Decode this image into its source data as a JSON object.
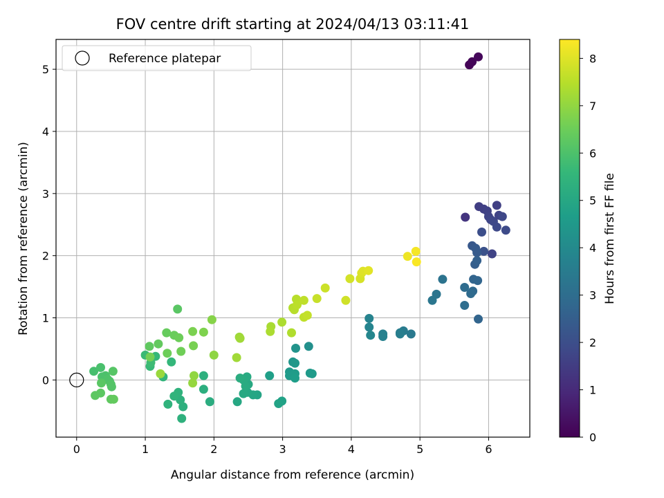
{
  "chart_data": {
    "type": "scatter",
    "title": "FOV centre drift starting at 2024/04/13 03:11:41",
    "xlabel": "Angular distance from reference (arcmin)",
    "ylabel": "Rotation from reference (arcmin)",
    "xlim": [
      -0.3,
      6.6
    ],
    "ylim": [
      -0.92,
      5.48
    ],
    "xticks": [
      0,
      1,
      2,
      3,
      4,
      5,
      6
    ],
    "yticks": [
      0,
      1,
      2,
      3,
      4,
      5
    ],
    "grid": true,
    "legend": {
      "placement": "top-left",
      "label": "Reference platepar",
      "marker": "open-circle"
    },
    "reference_point": {
      "x": 0,
      "y": 0
    },
    "colorbar": {
      "label": "Hours from first FF file",
      "colormap": "viridis",
      "range": [
        0,
        8.4
      ],
      "ticks": [
        0,
        1,
        2,
        3,
        4,
        5,
        6,
        7,
        8
      ]
    },
    "points": [
      {
        "x": 5.72,
        "y": 5.07,
        "c": 0.05
      },
      {
        "x": 5.76,
        "y": 5.12,
        "c": 0.1
      },
      {
        "x": 5.85,
        "y": 5.2,
        "c": 0.15
      },
      {
        "x": 5.66,
        "y": 2.62,
        "c": 1.3
      },
      {
        "x": 5.86,
        "y": 2.79,
        "c": 1.55
      },
      {
        "x": 5.93,
        "y": 2.75,
        "c": 1.6
      },
      {
        "x": 5.98,
        "y": 2.72,
        "c": 1.65
      },
      {
        "x": 6.0,
        "y": 2.63,
        "c": 1.7
      },
      {
        "x": 6.03,
        "y": 2.58,
        "c": 1.75
      },
      {
        "x": 6.07,
        "y": 2.55,
        "c": 1.8
      },
      {
        "x": 6.12,
        "y": 2.81,
        "c": 1.6
      },
      {
        "x": 6.15,
        "y": 2.65,
        "c": 1.7
      },
      {
        "x": 6.12,
        "y": 2.46,
        "c": 1.85
      },
      {
        "x": 6.2,
        "y": 2.63,
        "c": 1.8
      },
      {
        "x": 6.25,
        "y": 2.41,
        "c": 1.9
      },
      {
        "x": 6.05,
        "y": 2.03,
        "c": 1.7
      },
      {
        "x": 5.9,
        "y": 2.38,
        "c": 2.0
      },
      {
        "x": 5.93,
        "y": 2.07,
        "c": 2.1
      },
      {
        "x": 5.76,
        "y": 2.16,
        "c": 2.3
      },
      {
        "x": 5.81,
        "y": 2.12,
        "c": 2.35
      },
      {
        "x": 5.83,
        "y": 2.05,
        "c": 2.4
      },
      {
        "x": 5.8,
        "y": 1.86,
        "c": 2.5
      },
      {
        "x": 5.83,
        "y": 1.92,
        "c": 2.55
      },
      {
        "x": 5.78,
        "y": 1.62,
        "c": 2.7
      },
      {
        "x": 5.84,
        "y": 1.6,
        "c": 2.75
      },
      {
        "x": 5.77,
        "y": 1.43,
        "c": 2.85
      },
      {
        "x": 5.74,
        "y": 1.39,
        "c": 2.9
      },
      {
        "x": 5.65,
        "y": 1.49,
        "c": 2.95
      },
      {
        "x": 5.65,
        "y": 1.2,
        "c": 3.0
      },
      {
        "x": 5.85,
        "y": 0.98,
        "c": 2.7
      },
      {
        "x": 5.33,
        "y": 1.62,
        "c": 3.2
      },
      {
        "x": 5.24,
        "y": 1.38,
        "c": 3.25
      },
      {
        "x": 5.18,
        "y": 1.28,
        "c": 3.3
      },
      {
        "x": 4.87,
        "y": 0.74,
        "c": 3.4
      },
      {
        "x": 4.76,
        "y": 0.79,
        "c": 3.5
      },
      {
        "x": 4.71,
        "y": 0.76,
        "c": 3.55
      },
      {
        "x": 4.71,
        "y": 0.74,
        "c": 3.6
      },
      {
        "x": 4.46,
        "y": 0.74,
        "c": 3.65
      },
      {
        "x": 4.46,
        "y": 0.7,
        "c": 3.7
      },
      {
        "x": 4.26,
        "y": 0.99,
        "c": 3.75
      },
      {
        "x": 4.26,
        "y": 0.85,
        "c": 3.8
      },
      {
        "x": 4.28,
        "y": 0.72,
        "c": 3.85
      },
      {
        "x": 3.38,
        "y": 0.54,
        "c": 4.2
      },
      {
        "x": 3.19,
        "y": 0.51,
        "c": 4.3
      },
      {
        "x": 3.15,
        "y": 0.29,
        "c": 4.4
      },
      {
        "x": 3.18,
        "y": 0.27,
        "c": 4.45
      },
      {
        "x": 3.1,
        "y": 0.13,
        "c": 4.5
      },
      {
        "x": 3.1,
        "y": 0.07,
        "c": 4.55
      },
      {
        "x": 3.18,
        "y": 0.1,
        "c": 4.6
      },
      {
        "x": 3.18,
        "y": 0.03,
        "c": 4.65
      },
      {
        "x": 3.4,
        "y": 0.11,
        "c": 4.5
      },
      {
        "x": 3.43,
        "y": 0.1,
        "c": 4.55
      },
      {
        "x": 2.81,
        "y": 0.07,
        "c": 4.7
      },
      {
        "x": 2.99,
        "y": -0.34,
        "c": 4.8
      },
      {
        "x": 2.94,
        "y": -0.38,
        "c": 4.85
      },
      {
        "x": 2.63,
        "y": -0.24,
        "c": 4.9
      },
      {
        "x": 2.57,
        "y": -0.24,
        "c": 4.95
      },
      {
        "x": 2.49,
        "y": -0.2,
        "c": 5.0
      },
      {
        "x": 2.43,
        "y": -0.22,
        "c": 5.05
      },
      {
        "x": 2.5,
        "y": -0.07,
        "c": 5.05
      },
      {
        "x": 2.48,
        "y": 0.05,
        "c": 5.1
      },
      {
        "x": 2.43,
        "y": 0.0,
        "c": 5.15
      },
      {
        "x": 2.46,
        "y": -0.1,
        "c": 5.15
      },
      {
        "x": 2.38,
        "y": 0.03,
        "c": 5.2
      },
      {
        "x": 2.34,
        "y": -0.35,
        "c": 5.0
      },
      {
        "x": 1.94,
        "y": -0.35,
        "c": 5.2
      },
      {
        "x": 1.85,
        "y": -0.15,
        "c": 5.25
      },
      {
        "x": 1.85,
        "y": 0.07,
        "c": 5.3
      },
      {
        "x": 1.53,
        "y": -0.62,
        "c": 5.35
      },
      {
        "x": 1.55,
        "y": -0.43,
        "c": 5.3
      },
      {
        "x": 1.51,
        "y": -0.32,
        "c": 5.35
      },
      {
        "x": 1.48,
        "y": -0.2,
        "c": 5.4
      },
      {
        "x": 1.42,
        "y": -0.26,
        "c": 5.45
      },
      {
        "x": 1.33,
        "y": -0.39,
        "c": 5.4
      },
      {
        "x": 1.26,
        "y": 0.05,
        "c": 5.5
      },
      {
        "x": 1.38,
        "y": 0.29,
        "c": 5.55
      },
      {
        "x": 1.15,
        "y": 0.38,
        "c": 5.6
      },
      {
        "x": 1.07,
        "y": 0.22,
        "c": 5.65
      },
      {
        "x": 1.0,
        "y": 0.4,
        "c": 5.7
      },
      {
        "x": 1.08,
        "y": 0.28,
        "c": 5.75
      },
      {
        "x": 1.47,
        "y": 1.14,
        "c": 6.2
      },
      {
        "x": 0.25,
        "y": 0.14,
        "c": 5.9
      },
      {
        "x": 0.35,
        "y": 0.2,
        "c": 5.95
      },
      {
        "x": 0.37,
        "y": 0.05,
        "c": 6.0
      },
      {
        "x": 0.42,
        "y": 0.07,
        "c": 6.0
      },
      {
        "x": 0.45,
        "y": 0.01,
        "c": 6.05
      },
      {
        "x": 0.48,
        "y": -0.02,
        "c": 6.05
      },
      {
        "x": 0.5,
        "y": -0.07,
        "c": 6.1
      },
      {
        "x": 0.51,
        "y": -0.11,
        "c": 6.1
      },
      {
        "x": 0.53,
        "y": 0.14,
        "c": 6.15
      },
      {
        "x": 0.36,
        "y": -0.05,
        "c": 6.2
      },
      {
        "x": 0.35,
        "y": -0.21,
        "c": 6.25
      },
      {
        "x": 0.27,
        "y": -0.25,
        "c": 6.25
      },
      {
        "x": 0.5,
        "y": -0.31,
        "c": 6.3
      },
      {
        "x": 0.54,
        "y": -0.31,
        "c": 6.35
      },
      {
        "x": 1.06,
        "y": 0.54,
        "c": 6.3
      },
      {
        "x": 1.19,
        "y": 0.58,
        "c": 6.35
      },
      {
        "x": 1.31,
        "y": 0.76,
        "c": 6.4
      },
      {
        "x": 1.42,
        "y": 0.72,
        "c": 6.45
      },
      {
        "x": 1.49,
        "y": 0.68,
        "c": 6.5
      },
      {
        "x": 1.32,
        "y": 0.43,
        "c": 6.5
      },
      {
        "x": 1.52,
        "y": 0.46,
        "c": 6.55
      },
      {
        "x": 1.07,
        "y": 0.37,
        "c": 6.6
      },
      {
        "x": 1.7,
        "y": 0.55,
        "c": 6.65
      },
      {
        "x": 1.69,
        "y": 0.78,
        "c": 6.7
      },
      {
        "x": 1.85,
        "y": 0.77,
        "c": 6.75
      },
      {
        "x": 1.97,
        "y": 0.97,
        "c": 6.85
      },
      {
        "x": 2.0,
        "y": 0.4,
        "c": 6.95
      },
      {
        "x": 1.71,
        "y": 0.07,
        "c": 7.0
      },
      {
        "x": 1.69,
        "y": -0.05,
        "c": 7.05
      },
      {
        "x": 1.22,
        "y": 0.1,
        "c": 7.1
      },
      {
        "x": 2.33,
        "y": 0.36,
        "c": 7.2
      },
      {
        "x": 2.37,
        "y": 0.69,
        "c": 7.15
      },
      {
        "x": 2.38,
        "y": 0.67,
        "c": 7.2
      },
      {
        "x": 2.83,
        "y": 0.86,
        "c": 7.3
      },
      {
        "x": 2.82,
        "y": 0.78,
        "c": 7.35
      },
      {
        "x": 2.99,
        "y": 0.93,
        "c": 7.35
      },
      {
        "x": 3.13,
        "y": 0.76,
        "c": 7.4
      },
      {
        "x": 3.15,
        "y": 1.16,
        "c": 7.45
      },
      {
        "x": 3.17,
        "y": 1.13,
        "c": 7.5
      },
      {
        "x": 3.2,
        "y": 1.3,
        "c": 7.5
      },
      {
        "x": 3.21,
        "y": 1.21,
        "c": 7.55
      },
      {
        "x": 3.31,
        "y": 1.28,
        "c": 7.6
      },
      {
        "x": 3.31,
        "y": 1.01,
        "c": 7.6
      },
      {
        "x": 3.36,
        "y": 1.04,
        "c": 7.65
      },
      {
        "x": 3.5,
        "y": 1.31,
        "c": 7.7
      },
      {
        "x": 3.62,
        "y": 1.48,
        "c": 7.75
      },
      {
        "x": 3.92,
        "y": 1.28,
        "c": 7.8
      },
      {
        "x": 3.98,
        "y": 1.63,
        "c": 7.85
      },
      {
        "x": 4.13,
        "y": 1.63,
        "c": 7.9
      },
      {
        "x": 4.15,
        "y": 1.72,
        "c": 7.95
      },
      {
        "x": 4.17,
        "y": 1.75,
        "c": 8.0
      },
      {
        "x": 4.25,
        "y": 1.76,
        "c": 8.05
      },
      {
        "x": 4.82,
        "y": 1.99,
        "c": 8.2
      },
      {
        "x": 4.94,
        "y": 2.07,
        "c": 8.3
      },
      {
        "x": 4.95,
        "y": 1.9,
        "c": 8.35
      }
    ]
  },
  "colors": {
    "viridis": [
      "#440154",
      "#482878",
      "#3e4a89",
      "#31688e",
      "#26828e",
      "#1f9e89",
      "#35b779",
      "#6ece58",
      "#b5de2b",
      "#fde725"
    ],
    "grid": "#b0b0b0",
    "axis": "#000000"
  }
}
